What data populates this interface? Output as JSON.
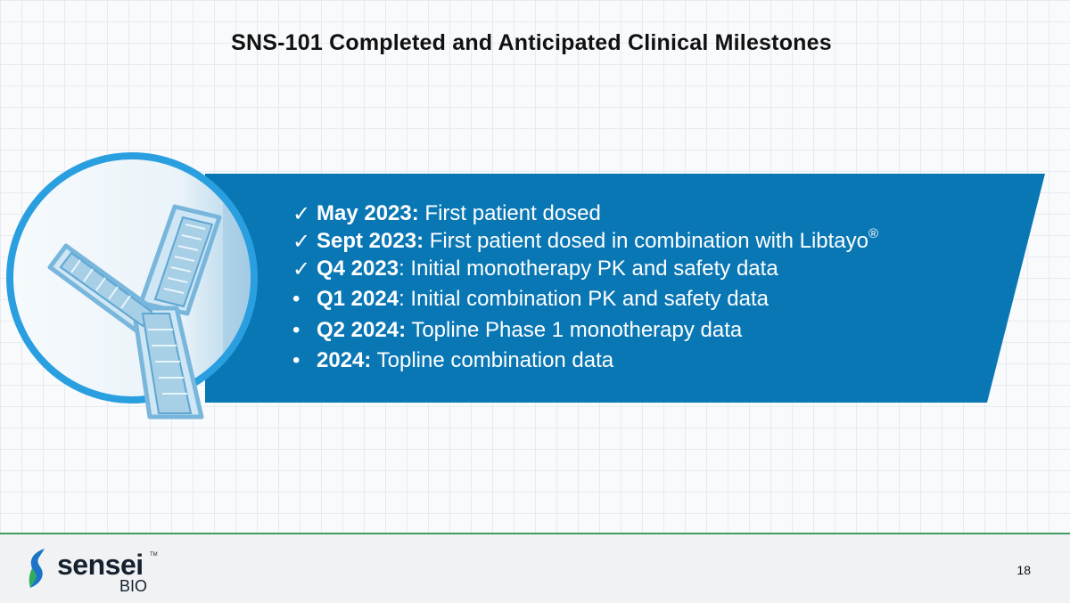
{
  "slide": {
    "title": "SNS-101 Completed and Anticipated Clinical Milestones",
    "milestones": [
      {
        "marker": "✓",
        "label": "May 2023:",
        "text": " First patient dosed",
        "sup": ""
      },
      {
        "marker": "✓",
        "label": "Sept 2023:",
        "text": " First patient dosed in combination with Libtayo",
        "sup": "®"
      },
      {
        "marker": "✓",
        "label": "Q4 2023",
        "text": ": Initial monotherapy PK and safety data",
        "sup": ""
      },
      {
        "marker": "•",
        "label": "Q1 2024",
        "text": ": Initial combination PK and safety data",
        "sup": ""
      },
      {
        "marker": "•",
        "label": "Q2 2024:",
        "text": " Topline Phase 1 monotherapy data",
        "sup": ""
      },
      {
        "marker": "•",
        "label": "2024:",
        "text": " Topline combination data",
        "sup": ""
      }
    ]
  },
  "footer": {
    "logo": {
      "word": "sensei",
      "tm": "TM",
      "sub": "BIO"
    },
    "page_number": "18"
  },
  "colors": {
    "banner": "#0a77b5",
    "circle_ring": "#2a9fe0",
    "antibody": "#a7cfe6",
    "footer_rule": "#3f9f62",
    "logo_blue": "#1b74c5",
    "logo_green": "#2fae5a"
  },
  "icons": [
    "antibody-icon",
    "sensei-logo-mark"
  ]
}
